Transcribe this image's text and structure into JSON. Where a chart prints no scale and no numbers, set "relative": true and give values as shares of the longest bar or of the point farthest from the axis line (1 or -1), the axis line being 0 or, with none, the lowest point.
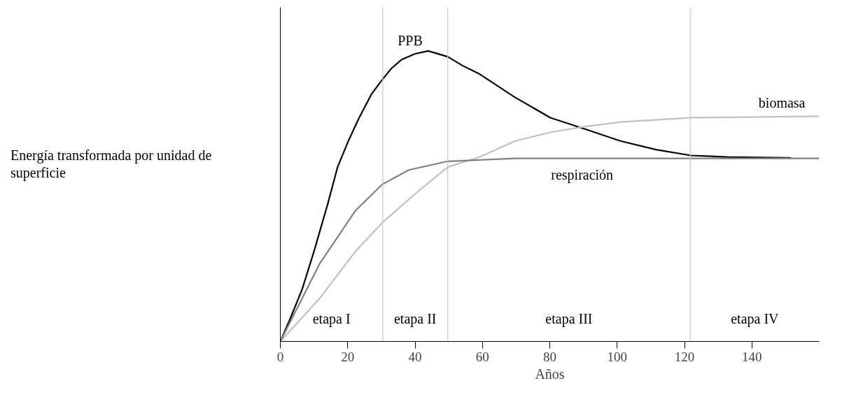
{
  "chart_data": {
    "type": "line",
    "relative": true,
    "xlabel": "Años",
    "ylabel": "Energía transformada por unidad de superficie",
    "xlim": [
      0,
      160
    ],
    "xticks": [
      0,
      20,
      40,
      60,
      80,
      100,
      120,
      140
    ],
    "grid": false,
    "legend": false,
    "marker": "none",
    "line_style": "solid",
    "series": [
      {
        "name": "PPB",
        "color": "#000000",
        "x": [
          0,
          3,
          6.5,
          10,
          14,
          17,
          20.2,
          23.4,
          27,
          30.2,
          33,
          36,
          40,
          43.9,
          49.7,
          54,
          59.2,
          69.7,
          80.2,
          90.7,
          101,
          111.6,
          122,
          132.6,
          151.6
        ],
        "values": [
          0,
          0.08,
          0.18,
          0.31,
          0.47,
          0.6,
          0.69,
          0.77,
          0.85,
          0.9,
          0.94,
          0.97,
          0.99,
          1.0,
          0.98,
          0.95,
          0.92,
          0.84,
          0.77,
          0.73,
          0.69,
          0.66,
          0.64,
          0.635,
          0.632
        ]
      },
      {
        "name": "biomasa",
        "color": "#c0c0c0",
        "x": [
          0,
          11.8,
          22.3,
          30.4,
          40.2,
          49.7,
          59.2,
          69.7,
          80.2,
          90.7,
          101,
          122,
          160
        ],
        "values": [
          0,
          0.15,
          0.31,
          0.41,
          0.51,
          0.6,
          0.635,
          0.69,
          0.72,
          0.74,
          0.755,
          0.77,
          0.775
        ]
      },
      {
        "name": "respiración",
        "color": "#808080",
        "x": [
          0,
          11.8,
          22.3,
          30.2,
          38.1,
          49.7,
          69.7,
          100,
          160
        ],
        "values": [
          0,
          0.27,
          0.45,
          0.54,
          0.59,
          0.62,
          0.63,
          0.63,
          0.63
        ]
      }
    ],
    "ref_lines": [
      {
        "axis": "x",
        "value": 30.4,
        "color": "#c8c8c8"
      },
      {
        "axis": "x",
        "value": 49.7,
        "color": "#c8c8c8"
      },
      {
        "axis": "x",
        "value": 121.7,
        "color": "#c8c8c8"
      }
    ],
    "annotations": [
      "etapa I",
      "etapa II",
      "etapa III",
      "etapa IV"
    ]
  }
}
